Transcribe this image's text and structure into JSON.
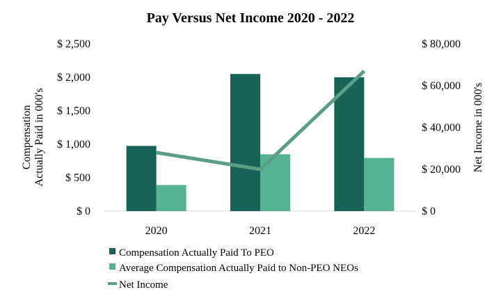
{
  "chart_data": {
    "type": "bar",
    "title": "Pay Versus Net Income 2020 - 2022",
    "categories": [
      "2020",
      "2021",
      "2022"
    ],
    "ylabel_left_lines": [
      "Compensation",
      "Actually Paid in 000's"
    ],
    "ylabel_right": "Net Income in 000's",
    "ylim_left": [
      0,
      2500
    ],
    "ylim_right": [
      0,
      80000
    ],
    "yticks_left": [
      "$ 0",
      "$ 500",
      "$ 1,000",
      "$ 1,500",
      "$ 2,000",
      "$ 2,500"
    ],
    "yticks_right": [
      "$ 0",
      "$ 20,000",
      "$ 40,000",
      "$ 60,000",
      "$ 80,000"
    ],
    "series": [
      {
        "name": "Compensation Actually Paid To PEO",
        "type": "bar",
        "axis": "left",
        "color": "#176357",
        "values": [
          975,
          2050,
          2000
        ]
      },
      {
        "name": "Average Compensation Actually Paid to Non-PEO NEOs",
        "type": "bar",
        "axis": "left",
        "color": "#55b394",
        "values": [
          390,
          850,
          795
        ]
      },
      {
        "name": "Net Income",
        "type": "line",
        "axis": "right",
        "color": "#5a9f84",
        "values": [
          28000,
          20000,
          67000
        ]
      }
    ],
    "grid": false,
    "legend": "bottom-left"
  }
}
